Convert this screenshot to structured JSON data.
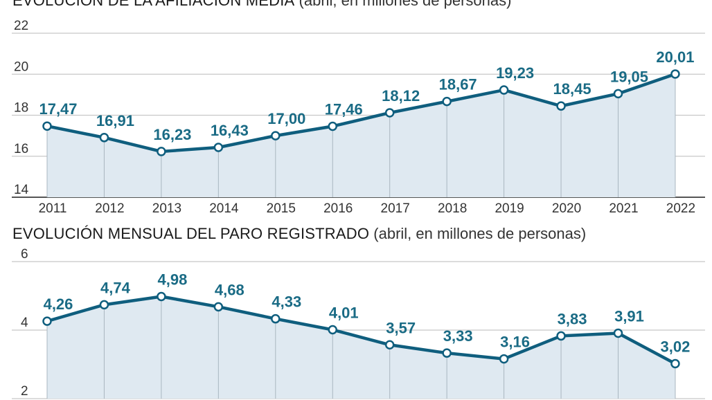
{
  "chart_data": [
    {
      "type": "area",
      "title": "EVOLUCIÓN DE LA AFILIACIÓN MEDIA",
      "subtitle": "(abril, en millones de personas)",
      "categories": [
        "2011",
        "2012",
        "2013",
        "2014",
        "2015",
        "2016",
        "2017",
        "2018",
        "2019",
        "2020",
        "2021",
        "2022"
      ],
      "values": [
        17.47,
        16.91,
        16.23,
        16.43,
        17.0,
        17.46,
        18.12,
        18.67,
        19.23,
        18.45,
        19.05,
        20.01
      ],
      "data_labels": [
        "17,47",
        "16,91",
        "16,23",
        "16,43",
        "17,00",
        "17,46",
        "18,12",
        "18,67",
        "19,23",
        "18,45",
        "19,05",
        "20,01"
      ],
      "ylim": [
        14,
        22
      ],
      "yticks": [
        "14",
        "16",
        "18",
        "20",
        "22"
      ],
      "grid": true,
      "colors": {
        "line": "#0f5e7e",
        "fill": "#dfe9f1",
        "label": "#1a6b85"
      }
    },
    {
      "type": "area",
      "title": "EVOLUCIÓN MENSUAL DEL PARO REGISTRADO",
      "subtitle": "(abril, en millones de personas)",
      "categories": [
        "2011",
        "2012",
        "2013",
        "2014",
        "2015",
        "2016",
        "2017",
        "2018",
        "2019",
        "2020",
        "2021",
        "2022"
      ],
      "values": [
        4.26,
        4.74,
        4.98,
        4.68,
        4.33,
        4.01,
        3.57,
        3.33,
        3.16,
        3.83,
        3.91,
        3.02
      ],
      "data_labels": [
        "4,26",
        "4,74",
        "4,98",
        "4,68",
        "4,33",
        "4,01",
        "3,57",
        "3,33",
        "3,16",
        "3,83",
        "3,91",
        "3,02"
      ],
      "ylim": [
        2,
        6
      ],
      "yticks": [
        "2",
        "4",
        "6"
      ],
      "grid": true,
      "colors": {
        "line": "#0f5e7e",
        "fill": "#dfe9f1",
        "label": "#1a6b85"
      }
    }
  ]
}
